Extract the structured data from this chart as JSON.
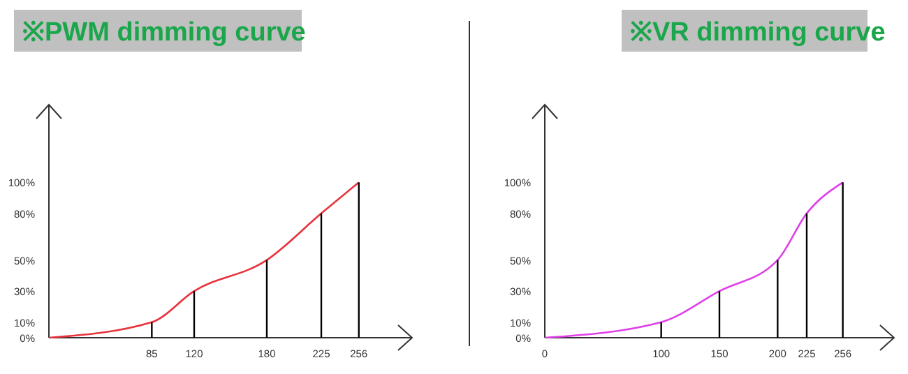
{
  "chart_data": [
    {
      "type": "line",
      "title": "※PWM dimming curve",
      "xlim": [
        0,
        300
      ],
      "ylim": [
        0,
        150
      ],
      "xticks": [
        85,
        120,
        180,
        225,
        256
      ],
      "yticks": [
        {
          "value": 0,
          "label": "0%"
        },
        {
          "value": 10,
          "label": "10%"
        },
        {
          "value": 30,
          "label": "30%"
        },
        {
          "value": 50,
          "label": "50%"
        },
        {
          "value": 80,
          "label": "80%"
        },
        {
          "value": 100,
          "label": "100%"
        }
      ],
      "grid": false,
      "series": [
        {
          "color": "#e8323c",
          "x": [
            0,
            85,
            120,
            180,
            225,
            256
          ],
          "values": [
            0,
            10,
            30,
            50,
            80,
            100
          ]
        },
        {
          "type": "bar",
          "color": "#000000",
          "x": [
            85,
            120,
            180,
            225,
            256
          ],
          "values": [
            10,
            30,
            50,
            80,
            100
          ]
        }
      ]
    },
    {
      "type": "line",
      "title": "※VR dimming curve",
      "xlim": [
        0,
        300
      ],
      "ylim": [
        0,
        150
      ],
      "xticks": [
        0,
        100,
        150,
        200,
        225,
        256
      ],
      "yticks": [
        {
          "value": 0,
          "label": "0%"
        },
        {
          "value": 10,
          "label": "10%"
        },
        {
          "value": 30,
          "label": "30%"
        },
        {
          "value": 50,
          "label": "50%"
        },
        {
          "value": 80,
          "label": "80%"
        },
        {
          "value": 100,
          "label": "100%"
        }
      ],
      "grid": false,
      "series": [
        {
          "color": "#e040e8",
          "x": [
            0,
            100,
            150,
            200,
            225,
            256
          ],
          "values": [
            0,
            10,
            30,
            50,
            80,
            100
          ]
        },
        {
          "type": "bar",
          "color": "#000000",
          "x": [
            100,
            150,
            200,
            225,
            256
          ],
          "values": [
            10,
            30,
            50,
            80,
            100
          ]
        }
      ]
    }
  ]
}
